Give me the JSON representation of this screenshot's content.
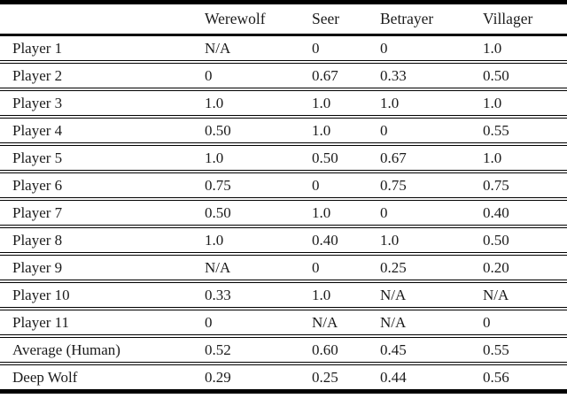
{
  "colors": {
    "text": "#1b1b1b",
    "rule": "#000000",
    "background": "#ffffff"
  },
  "table": {
    "columns": [
      "",
      "Werewolf",
      "Seer",
      "Betrayer",
      "Villager"
    ],
    "rows": [
      {
        "label": "Player 1",
        "values": [
          "N/A",
          "0",
          "0",
          "1.0"
        ]
      },
      {
        "label": "Player 2",
        "values": [
          "0",
          "0.67",
          "0.33",
          "0.50"
        ]
      },
      {
        "label": "Player 3",
        "values": [
          "1.0",
          "1.0",
          "1.0",
          "1.0"
        ]
      },
      {
        "label": "Player 4",
        "values": [
          "0.50",
          "1.0",
          "0",
          "0.55"
        ]
      },
      {
        "label": "Player 5",
        "values": [
          "1.0",
          "0.50",
          "0.67",
          "1.0"
        ]
      },
      {
        "label": "Player 6",
        "values": [
          "0.75",
          "0",
          "0.75",
          "0.75"
        ]
      },
      {
        "label": "Player 7",
        "values": [
          "0.50",
          "1.0",
          "0",
          "0.40"
        ]
      },
      {
        "label": "Player 8",
        "values": [
          "1.0",
          "0.40",
          "1.0",
          "0.50"
        ]
      },
      {
        "label": "Player 9",
        "values": [
          "N/A",
          "0",
          "0.25",
          "0.20"
        ]
      },
      {
        "label": "Player 10",
        "values": [
          "0.33",
          "1.0",
          "N/A",
          "N/A"
        ]
      },
      {
        "label": "Player 11",
        "values": [
          "0",
          "N/A",
          "N/A",
          "0"
        ]
      },
      {
        "label": "Average (Human)",
        "values": [
          "0.52",
          "0.60",
          "0.45",
          "0.55"
        ]
      },
      {
        "label": "Deep Wolf",
        "values": [
          "0.29",
          "0.25",
          "0.44",
          "0.56"
        ]
      }
    ]
  }
}
